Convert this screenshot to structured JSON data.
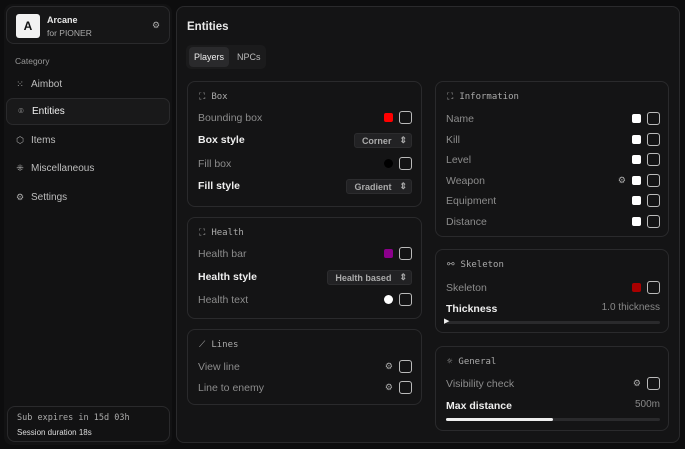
{
  "brand": {
    "initial": "A",
    "name": "Arcane",
    "sub": "for PIONER"
  },
  "sidebar": {
    "category": "Category",
    "items": [
      {
        "label": "Aimbot",
        "icon": "crosshair-dots-icon"
      },
      {
        "label": "Entities",
        "icon": "scan-face-icon",
        "active": true
      },
      {
        "label": "Items",
        "icon": "box-icon"
      },
      {
        "label": "Miscellaneous",
        "icon": "grid-icon"
      },
      {
        "label": "Settings",
        "icon": "gear-icon"
      }
    ]
  },
  "footer": {
    "sub": "Sub expires in 15d 03h",
    "session": "Session duration 18s"
  },
  "main": {
    "title": "Entities",
    "tabs": [
      "Players",
      "NPCs"
    ]
  },
  "box": {
    "title": "Box",
    "bounding": "Bounding box",
    "bounding_color": "#ff0000",
    "box_style": "Box style",
    "box_style_value": "Corner",
    "fill_box": "Fill box",
    "fill_color": "#000000",
    "fill_style": "Fill style",
    "fill_style_value": "Gradient"
  },
  "health": {
    "title": "Health",
    "bar": "Health bar",
    "bar_color": "#8b008b",
    "style": "Health style",
    "style_value": "Health based",
    "text": "Health text",
    "text_color": "#ffffff"
  },
  "lines": {
    "title": "Lines",
    "view": "View line",
    "enemy": "Line to enemy"
  },
  "info": {
    "title": "Information",
    "items": [
      "Name",
      "Kill",
      "Level",
      "Weapon",
      "Equipment",
      "Distance"
    ]
  },
  "skeleton": {
    "title": "Skeleton",
    "label": "Skeleton",
    "color": "#aa0000",
    "thickness": "Thickness",
    "thickness_value": "1.0 thickness",
    "thickness_fraction": 0.0
  },
  "general": {
    "title": "General",
    "visibility": "Visibility check",
    "max": "Max distance",
    "max_value": "500m",
    "max_fraction": 0.5
  }
}
